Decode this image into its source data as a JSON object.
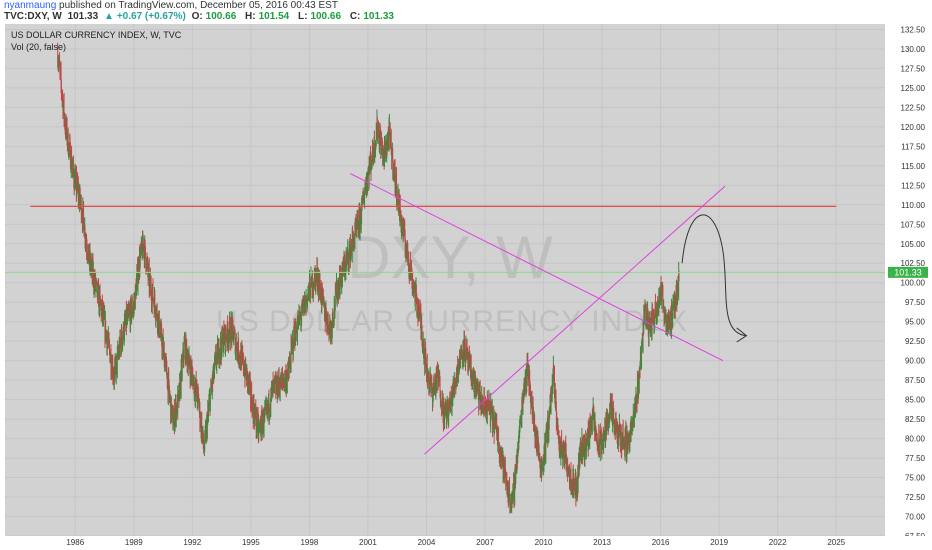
{
  "header": {
    "author": "nyanmaung",
    "published": "published on TradingView.com, December 05, 2016 00:43 EST",
    "symbol": "TVC:DXY, W",
    "last": "101.33",
    "change": "+0.67 (+0.67%)",
    "open_label": "O:",
    "open": "100.66",
    "high_label": "H:",
    "high": "101.54",
    "low_label": "L:",
    "low": "100.66",
    "close_label": "C:",
    "close": "101.33"
  },
  "legend": {
    "title": "US DOLLAR CURRENCY INDEX, W, TVC",
    "indicator": "Vol (20, false)"
  },
  "watermark": {
    "symbol": "DXY, W",
    "name": "US DOLLAR CURRENCY INDEX"
  },
  "price_tag": "101.33",
  "colors": {
    "background": "#d2d2d2",
    "candle_up": "#3a8a3a",
    "candle_down": "#c04646",
    "resistance": "#e04c4c",
    "trendline": "#e040e0",
    "price_line": "#7ed37e",
    "price_tag": "#3cb34a"
  },
  "chart_data": {
    "type": "line",
    "title": "US DOLLAR CURRENCY INDEX, W, TVC",
    "xlabel": "",
    "ylabel": "",
    "x_ticks": [
      "1986",
      "1989",
      "1992",
      "1995",
      "1998",
      "2001",
      "2004",
      "2007",
      "2010",
      "2013",
      "2016",
      "2019",
      "2022",
      "2025"
    ],
    "y_ticks": [
      "67.50",
      "70.00",
      "72.50",
      "75.00",
      "77.50",
      "80.00",
      "82.50",
      "85.00",
      "87.50",
      "90.00",
      "92.50",
      "95.00",
      "97.50",
      "100.00",
      "102.50",
      "105.00",
      "107.50",
      "110.00",
      "112.50",
      "115.00",
      "117.50",
      "120.00",
      "122.50",
      "125.00",
      "127.50",
      "130.00",
      "132.50"
    ],
    "xlim": [
      1982.4,
      2027.5
    ],
    "ylim": [
      67.5,
      133.2
    ],
    "grid": true,
    "series": [
      {
        "values": [
          [
            1985.1,
            129.5
          ],
          [
            1985.5,
            120
          ],
          [
            1985.9,
            114
          ],
          [
            1986.3,
            110
          ],
          [
            1986.7,
            103
          ],
          [
            1987.0,
            100
          ],
          [
            1987.3,
            97
          ],
          [
            1987.7,
            92
          ],
          [
            1988.0,
            88
          ],
          [
            1988.3,
            92
          ],
          [
            1988.6,
            95
          ],
          [
            1989.0,
            97
          ],
          [
            1989.3,
            103
          ],
          [
            1989.5,
            105
          ],
          [
            1989.8,
            100
          ],
          [
            1990.2,
            96
          ],
          [
            1990.6,
            90
          ],
          [
            1991.0,
            82
          ],
          [
            1991.3,
            85
          ],
          [
            1991.6,
            92
          ],
          [
            1991.9,
            89
          ],
          [
            1992.3,
            85
          ],
          [
            1992.6,
            78.5
          ],
          [
            1992.9,
            85
          ],
          [
            1993.2,
            90
          ],
          [
            1993.6,
            93
          ],
          [
            1994.0,
            94
          ],
          [
            1994.4,
            91
          ],
          [
            1994.8,
            88
          ],
          [
            1995.1,
            84
          ],
          [
            1995.4,
            81
          ],
          [
            1995.8,
            83
          ],
          [
            1996.1,
            86
          ],
          [
            1996.5,
            87
          ],
          [
            1996.9,
            88
          ],
          [
            1997.2,
            93
          ],
          [
            1997.6,
            96
          ],
          [
            1998.0,
            99
          ],
          [
            1998.4,
            101
          ],
          [
            1998.8,
            96
          ],
          [
            1999.1,
            94
          ],
          [
            1999.4,
            99
          ],
          [
            1999.8,
            102
          ],
          [
            2000.2,
            105
          ],
          [
            2000.6,
            108
          ],
          [
            2000.9,
            113
          ],
          [
            2001.2,
            116
          ],
          [
            2001.5,
            120
          ],
          [
            2001.8,
            116
          ],
          [
            2002.1,
            119
          ],
          [
            2002.4,
            113
          ],
          [
            2002.7,
            108
          ],
          [
            2003.0,
            104
          ],
          [
            2003.3,
            100
          ],
          [
            2003.7,
            95
          ],
          [
            2004.0,
            89
          ],
          [
            2004.3,
            86
          ],
          [
            2004.6,
            88
          ],
          [
            2004.9,
            83
          ],
          [
            2005.2,
            84
          ],
          [
            2005.6,
            89
          ],
          [
            2005.9,
            92
          ],
          [
            2006.2,
            89
          ],
          [
            2006.6,
            86
          ],
          [
            2006.9,
            84
          ],
          [
            2007.2,
            84
          ],
          [
            2007.6,
            81
          ],
          [
            2007.9,
            77
          ],
          [
            2008.2,
            73
          ],
          [
            2008.4,
            71.5
          ],
          [
            2008.7,
            79
          ],
          [
            2009.0,
            87
          ],
          [
            2009.2,
            89
          ],
          [
            2009.5,
            82
          ],
          [
            2009.9,
            76
          ],
          [
            2010.2,
            81
          ],
          [
            2010.5,
            88
          ],
          [
            2010.8,
            79
          ],
          [
            2011.1,
            78
          ],
          [
            2011.4,
            75
          ],
          [
            2011.7,
            73.5
          ],
          [
            2011.9,
            79
          ],
          [
            2012.2,
            79
          ],
          [
            2012.5,
            83
          ],
          [
            2012.8,
            79
          ],
          [
            2013.1,
            80
          ],
          [
            2013.4,
            84
          ],
          [
            2013.7,
            81
          ],
          [
            2014.0,
            80
          ],
          [
            2014.3,
            79.5
          ],
          [
            2014.6,
            82
          ],
          [
            2014.9,
            88
          ],
          [
            2015.2,
            97
          ],
          [
            2015.4,
            94
          ],
          [
            2015.7,
            96
          ],
          [
            2016.0,
            99
          ],
          [
            2016.3,
            95
          ],
          [
            2016.6,
            95.5
          ],
          [
            2016.8,
            98
          ],
          [
            2016.95,
            101.33
          ]
        ]
      }
    ],
    "overlays": {
      "horizontal_line": 109.8,
      "last_price": 101.33,
      "trendline_down": [
        [
          2000.1,
          114
        ],
        [
          2019.2,
          90
        ]
      ],
      "trendline_up": [
        [
          2003.9,
          78
        ],
        [
          2019.3,
          112.4
        ]
      ]
    }
  }
}
